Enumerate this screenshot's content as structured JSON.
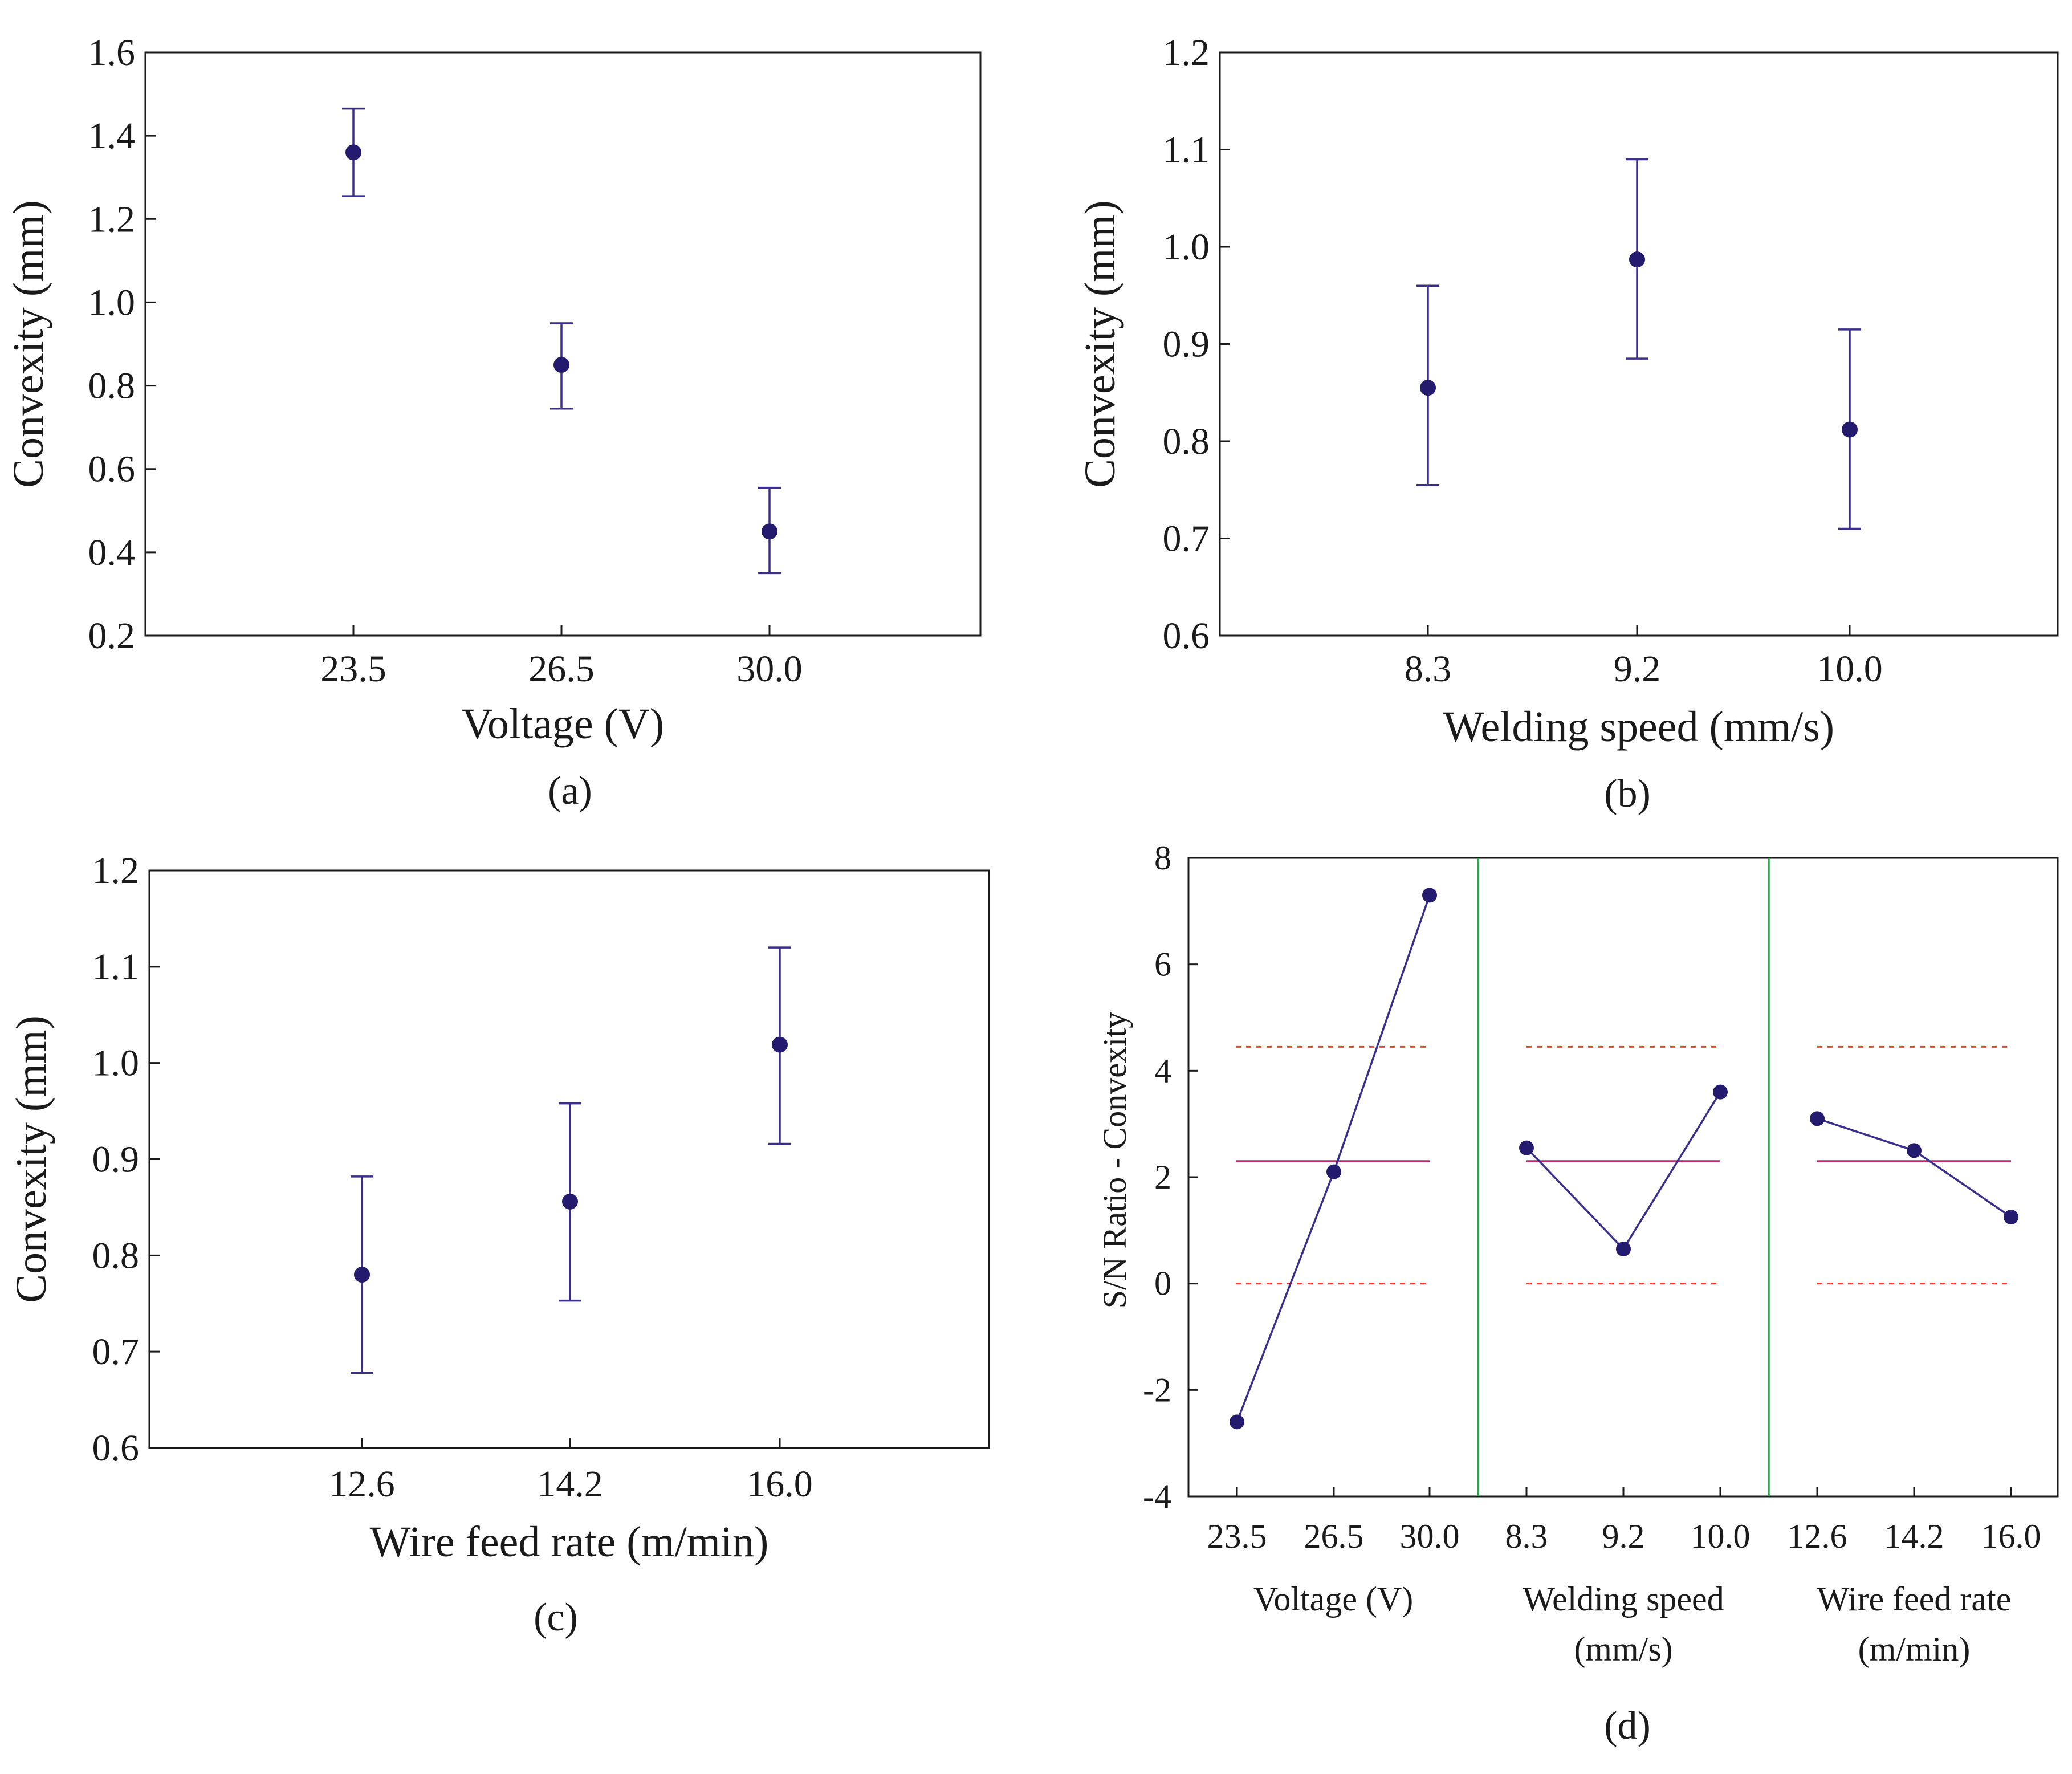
{
  "colors": {
    "marker": "#241a6e",
    "error_bar": "#3a2f8a",
    "sn_line": "#3a2f8a",
    "mean_line": "#b0306e",
    "limit_line": "#e8432e",
    "divider": "#2aa84a",
    "axis": "#1a1a1a"
  },
  "panels": {
    "a": {
      "label": "(a)"
    },
    "b": {
      "label": "(b)"
    },
    "c": {
      "label": "(c)"
    },
    "d": {
      "label": "(d)"
    }
  },
  "chart_data": [
    {
      "id": "a",
      "type": "scatter",
      "error_bars": true,
      "categories": [
        "23.5",
        "26.5",
        "30.0"
      ],
      "values": [
        1.36,
        0.85,
        0.45
      ],
      "err_low": [
        1.255,
        0.745,
        0.35
      ],
      "err_high": [
        1.465,
        0.95,
        0.555
      ],
      "xlabel": "Voltage (V)",
      "ylabel": "Convexity (mm)",
      "ylim": [
        0.2,
        1.6
      ],
      "yticks": [
        "0.2",
        "0.4",
        "0.6",
        "0.8",
        "1.0",
        "1.2",
        "1.4",
        "1.6"
      ],
      "ytick_values": [
        0.2,
        0.4,
        0.6,
        0.8,
        1.0,
        1.2,
        1.4,
        1.6
      ],
      "grid": false
    },
    {
      "id": "b",
      "type": "scatter",
      "error_bars": true,
      "categories": [
        "8.3",
        "9.2",
        "10.0"
      ],
      "values": [
        0.855,
        0.987,
        0.812
      ],
      "err_low": [
        0.755,
        0.885,
        0.71
      ],
      "err_high": [
        0.96,
        1.09,
        0.915
      ],
      "xlabel": "Welding speed (mm/s)",
      "ylabel": "Convexity (mm)",
      "ylim": [
        0.6,
        1.2
      ],
      "yticks": [
        "0.6",
        "0.7",
        "0.8",
        "0.9",
        "1.0",
        "1.1",
        "1.2"
      ],
      "ytick_values": [
        0.6,
        0.7,
        0.8,
        0.9,
        1.0,
        1.1,
        1.2
      ],
      "grid": false
    },
    {
      "id": "c",
      "type": "scatter",
      "error_bars": true,
      "categories": [
        "12.6",
        "14.2",
        "16.0"
      ],
      "values": [
        0.78,
        0.856,
        1.019
      ],
      "err_low": [
        0.678,
        0.753,
        0.916
      ],
      "err_high": [
        0.882,
        0.958,
        1.12
      ],
      "xlabel": "Wire feed rate (m/min)",
      "ylabel": "Convexity (mm)",
      "ylim": [
        0.6,
        1.2
      ],
      "yticks": [
        "0.6",
        "0.7",
        "0.8",
        "0.9",
        "1.0",
        "1.1",
        "1.2"
      ],
      "ytick_values": [
        0.6,
        0.7,
        0.8,
        0.9,
        1.0,
        1.1,
        1.2
      ],
      "grid": false
    },
    {
      "id": "d",
      "type": "line",
      "ylabel": "S/N Ratio - Convexity",
      "ylim": [
        -4,
        8
      ],
      "yticks": [
        "-4",
        "-2",
        "0",
        "2",
        "4",
        "6",
        "8"
      ],
      "ytick_values": [
        -4,
        -2,
        0,
        2,
        4,
        6,
        8
      ],
      "mean": 2.3,
      "limits": [
        0.0,
        4.45
      ],
      "groups": [
        {
          "name_lines": [
            "Voltage (V)"
          ],
          "categories": [
            "23.5",
            "26.5",
            "30.0"
          ],
          "values": [
            -2.6,
            2.1,
            7.3
          ]
        },
        {
          "name_lines": [
            "Welding speed",
            "(mm/s)"
          ],
          "categories": [
            "8.3",
            "9.2",
            "10.0"
          ],
          "values": [
            2.55,
            0.65,
            3.6
          ]
        },
        {
          "name_lines": [
            "Wire feed rate",
            "(m/min)"
          ],
          "categories": [
            "12.6",
            "14.2",
            "16.0"
          ],
          "values": [
            3.1,
            2.5,
            1.25
          ]
        }
      ],
      "grid": false
    }
  ]
}
